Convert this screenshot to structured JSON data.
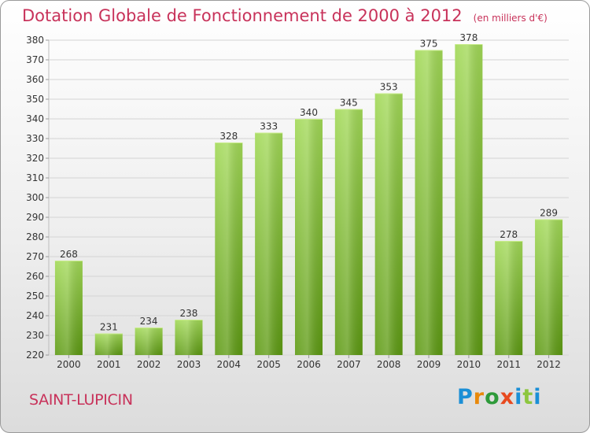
{
  "header": {
    "title": "Dotation Globale de Fonctionnement de 2000 à 2012",
    "unit": "(en milliers d'€)"
  },
  "commune": "SAINT-LUPICIN",
  "logo": {
    "letters": [
      "P",
      "r",
      "o",
      "x",
      "i",
      "t",
      "i"
    ]
  },
  "colors": {
    "bar_light": "#a2d957",
    "bar_dark": "#5d9a12",
    "title": "#c8325a",
    "grid": "#d4d4d4"
  },
  "chart_data": {
    "type": "bar",
    "title": "Dotation Globale de Fonctionnement de 2000 à 2012",
    "subtitle": "(en milliers d'€)",
    "xlabel": "",
    "ylabel": "",
    "categories": [
      "2000",
      "2001",
      "2002",
      "2003",
      "2004",
      "2005",
      "2006",
      "2007",
      "2008",
      "2009",
      "2010",
      "2011",
      "2012"
    ],
    "values": [
      268,
      231,
      234,
      238,
      328,
      333,
      340,
      345,
      353,
      375,
      378,
      278,
      289
    ],
    "ylim": [
      220,
      380
    ],
    "yticks": [
      220,
      230,
      240,
      250,
      260,
      270,
      280,
      290,
      300,
      310,
      320,
      330,
      340,
      350,
      360,
      370,
      380
    ],
    "grid": true,
    "legend": "none"
  }
}
